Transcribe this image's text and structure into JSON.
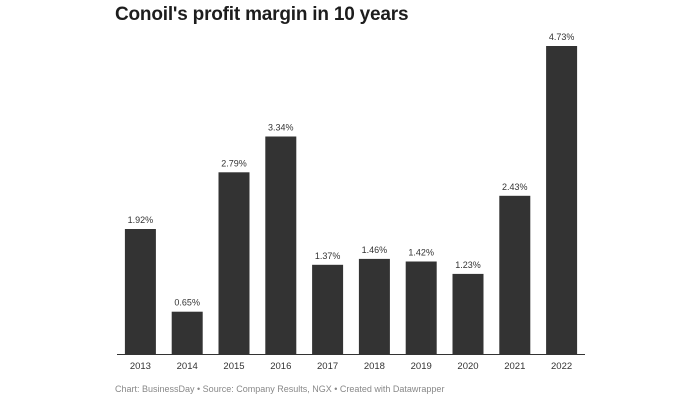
{
  "chart_data": {
    "type": "bar",
    "title": "Conoil's profit margin in 10 years",
    "categories": [
      "2013",
      "2014",
      "2015",
      "2016",
      "2017",
      "2018",
      "2019",
      "2020",
      "2021",
      "2022"
    ],
    "values": [
      1.92,
      0.65,
      2.79,
      3.34,
      1.37,
      1.46,
      1.42,
      1.23,
      2.43,
      4.73
    ],
    "value_labels": [
      "1.92%",
      "0.65%",
      "2.79%",
      "3.34%",
      "1.37%",
      "1.46%",
      "1.42%",
      "1.23%",
      "2.43%",
      "4.73%"
    ],
    "xlabel": "",
    "ylabel": "",
    "ylim": [
      0,
      4.73
    ],
    "grid": false,
    "bar_color": "#333333"
  },
  "footer": {
    "source": "Chart: BusinessDay • Source: Company Results, NGX • Created with Datawrapper"
  }
}
